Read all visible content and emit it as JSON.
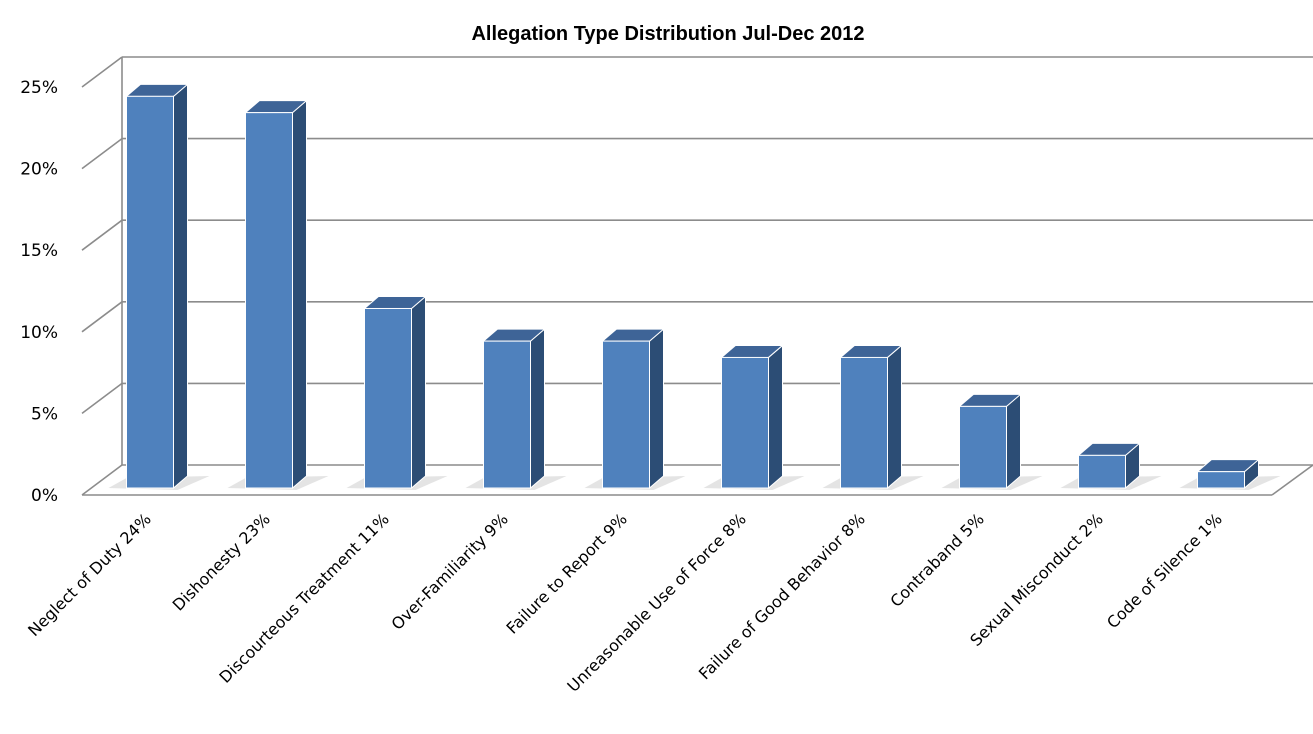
{
  "chart_data": {
    "type": "bar",
    "title": "Allegation Type Distribution Jul-Dec 2012",
    "categories": [
      "Neglect of Duty 24%",
      "Dishonesty 23%",
      "Discourteous Treatment 11%",
      "Over-Familiarity 9%",
      "Failure to Report 9%",
      "Unreasonable Use of Force 8%",
      "Failure of Good Behavior 8%",
      "Contraband 5%",
      "Sexual Misconduct 2%",
      "Code of Silence 1%"
    ],
    "values": [
      24,
      23,
      11,
      9,
      9,
      8,
      8,
      5,
      2,
      1
    ],
    "xlabel": "",
    "ylabel": "",
    "ylim": [
      0,
      25
    ],
    "yticks": [
      "0%",
      "5%",
      "10%",
      "15%",
      "20%",
      "25%"
    ],
    "grid": true,
    "colors": {
      "bar_front": "#4f81bd",
      "bar_side": "#2c4d75",
      "bar_top": "#3e6497",
      "grid": "#8c8c8c"
    }
  }
}
